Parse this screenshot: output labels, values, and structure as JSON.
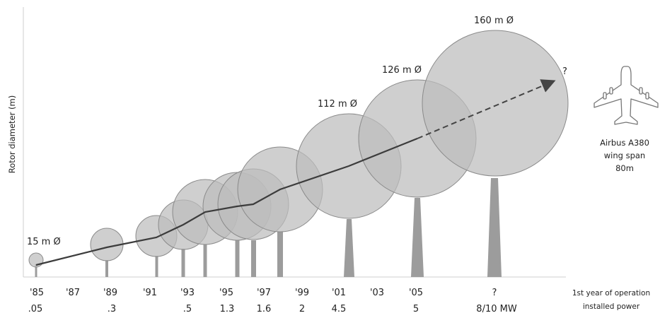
{
  "y_axis_label": "Rotor diameter (m)",
  "rotor_labels": [
    "15 m Ø",
    "112 m Ø",
    "126 m Ø",
    "160 m Ø"
  ],
  "future_marker": "?",
  "aircraft": {
    "icon": "airplane-icon",
    "caption_lines": [
      "Airbus A380",
      "wing span",
      "80m"
    ]
  },
  "timeline": {
    "years": [
      "'85",
      "'87",
      "'89",
      "'91",
      "'93",
      "'95",
      "'97",
      "'99",
      "'01",
      "'03",
      "'05",
      "?"
    ],
    "powers": [
      ".05",
      ".3",
      ".5",
      "1.3",
      "1.6",
      "2",
      "4.5",
      "5",
      "8/10 MW"
    ],
    "row_labels": [
      "1st year of operation",
      "installed power"
    ]
  }
}
